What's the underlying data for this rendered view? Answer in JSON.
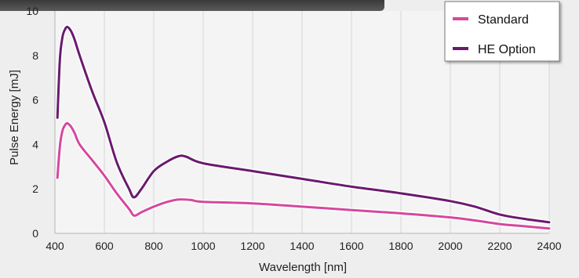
{
  "chart_data": {
    "type": "line",
    "title": "",
    "xlabel": "Wavelength [nm]",
    "ylabel": "Pulse Energy [mJ]",
    "xlim": [
      400,
      2400
    ],
    "ylim": [
      0,
      10
    ],
    "xticks": [
      "400",
      "600",
      "800",
      "1000",
      "1200",
      "1400",
      "1600",
      "1800",
      "2000",
      "2200",
      "2400"
    ],
    "yticks": [
      "0",
      "2",
      "4",
      "6",
      "8",
      "10"
    ],
    "grid": "vertical",
    "legend_position": "top-right",
    "series": [
      {
        "name": "Standard",
        "color": "#d4489f",
        "points": [
          [
            410,
            2.5
          ],
          [
            420,
            3.9
          ],
          [
            430,
            4.6
          ],
          [
            440,
            4.85
          ],
          [
            450,
            4.95
          ],
          [
            465,
            4.8
          ],
          [
            480,
            4.5
          ],
          [
            500,
            4.0
          ],
          [
            550,
            3.3
          ],
          [
            600,
            2.6
          ],
          [
            650,
            1.8
          ],
          [
            700,
            1.1
          ],
          [
            720,
            0.8
          ],
          [
            750,
            0.95
          ],
          [
            800,
            1.2
          ],
          [
            850,
            1.4
          ],
          [
            900,
            1.52
          ],
          [
            950,
            1.5
          ],
          [
            1000,
            1.42
          ],
          [
            1200,
            1.35
          ],
          [
            1400,
            1.2
          ],
          [
            1600,
            1.05
          ],
          [
            1800,
            0.9
          ],
          [
            2000,
            0.72
          ],
          [
            2100,
            0.58
          ],
          [
            2200,
            0.42
          ],
          [
            2300,
            0.32
          ],
          [
            2400,
            0.22
          ]
        ]
      },
      {
        "name": "HE Option",
        "color": "#6a1a6e",
        "points": [
          [
            410,
            5.2
          ],
          [
            420,
            7.8
          ],
          [
            430,
            8.8
          ],
          [
            440,
            9.15
          ],
          [
            450,
            9.28
          ],
          [
            465,
            9.1
          ],
          [
            480,
            8.7
          ],
          [
            500,
            8.0
          ],
          [
            550,
            6.4
          ],
          [
            600,
            5.0
          ],
          [
            650,
            3.2
          ],
          [
            700,
            2.0
          ],
          [
            720,
            1.62
          ],
          [
            750,
            2.0
          ],
          [
            800,
            2.8
          ],
          [
            850,
            3.2
          ],
          [
            900,
            3.47
          ],
          [
            930,
            3.45
          ],
          [
            1000,
            3.15
          ],
          [
            1200,
            2.8
          ],
          [
            1400,
            2.45
          ],
          [
            1600,
            2.1
          ],
          [
            1800,
            1.8
          ],
          [
            2000,
            1.45
          ],
          [
            2100,
            1.2
          ],
          [
            2200,
            0.85
          ],
          [
            2300,
            0.65
          ],
          [
            2400,
            0.5
          ]
        ]
      }
    ]
  }
}
